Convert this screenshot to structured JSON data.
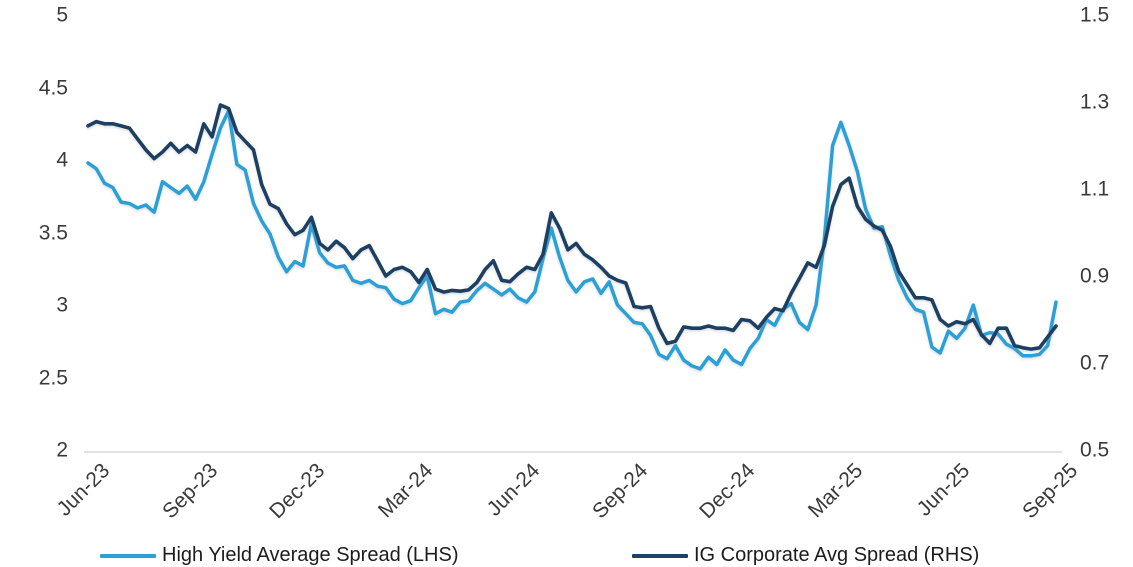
{
  "chart_data": {
    "type": "line",
    "title": "",
    "frequency": "weekly",
    "grid": false,
    "legend_position": "bottom",
    "background": "#ffffff",
    "axis_line_color": "#d9d9d9",
    "tick_text_color": "#3a3a3a",
    "x_tick_labels": [
      "Jun-23",
      "Sep-23",
      "Dec-23",
      "Mar-24",
      "Jun-24",
      "Sep-24",
      "Dec-24",
      "Mar-25",
      "Jun-25",
      "Sep-25"
    ],
    "weeks_per_x_tick": 13,
    "left_axis": {
      "min": 2,
      "max": 5,
      "tick_labels": [
        "5",
        "4.5",
        "4",
        "3.5",
        "3",
        "2.5",
        "2"
      ]
    },
    "right_axis": {
      "min": 0.5,
      "max": 1.5,
      "tick_labels": [
        "1.5",
        "1.3",
        "1.1",
        "0.9",
        "0.7",
        "0.5"
      ]
    },
    "series": [
      {
        "name": "High Yield Average Spread (LHS)",
        "axis": "left",
        "color": "#2ba0d8",
        "values": [
          3.98,
          3.94,
          3.84,
          3.81,
          3.71,
          3.7,
          3.67,
          3.69,
          3.64,
          3.85,
          3.81,
          3.77,
          3.82,
          3.73,
          3.85,
          4.04,
          4.22,
          4.34,
          3.97,
          3.93,
          3.7,
          3.58,
          3.49,
          3.33,
          3.23,
          3.3,
          3.27,
          3.56,
          3.36,
          3.29,
          3.26,
          3.27,
          3.17,
          3.15,
          3.17,
          3.13,
          3.12,
          3.04,
          3.01,
          3.03,
          3.12,
          3.2,
          2.94,
          2.97,
          2.95,
          3.02,
          3.03,
          3.1,
          3.15,
          3.11,
          3.07,
          3.11,
          3.05,
          3.02,
          3.09,
          3.32,
          3.53,
          3.33,
          3.17,
          3.09,
          3.16,
          3.18,
          3.08,
          3.16,
          3.0,
          2.94,
          2.88,
          2.87,
          2.79,
          2.66,
          2.63,
          2.72,
          2.62,
          2.58,
          2.56,
          2.64,
          2.59,
          2.69,
          2.62,
          2.59,
          2.7,
          2.77,
          2.9,
          2.86,
          2.97,
          3.01,
          2.88,
          2.83,
          3.0,
          3.45,
          4.1,
          4.26,
          4.1,
          3.92,
          3.66,
          3.53,
          3.54,
          3.34,
          3.17,
          3.05,
          2.97,
          2.95,
          2.71,
          2.67,
          2.82,
          2.77,
          2.84,
          3.0,
          2.79,
          2.81,
          2.8,
          2.73,
          2.7,
          2.65,
          2.65,
          2.66,
          2.72,
          3.02
        ]
      },
      {
        "name": "IG Corporate Avg Spread (RHS)",
        "axis": "right",
        "color": "#1e4164",
        "values": [
          1.245,
          1.255,
          1.25,
          1.25,
          1.245,
          1.24,
          1.215,
          1.19,
          1.17,
          1.185,
          1.205,
          1.185,
          1.2,
          1.185,
          1.25,
          1.22,
          1.293,
          1.285,
          1.23,
          1.21,
          1.19,
          1.11,
          1.065,
          1.055,
          1.02,
          0.995,
          1.005,
          1.035,
          0.975,
          0.96,
          0.98,
          0.965,
          0.94,
          0.96,
          0.97,
          0.935,
          0.9,
          0.915,
          0.92,
          0.91,
          0.885,
          0.915,
          0.87,
          0.863,
          0.867,
          0.865,
          0.868,
          0.885,
          0.915,
          0.935,
          0.89,
          0.887,
          0.905,
          0.92,
          0.915,
          0.95,
          1.045,
          1.01,
          0.96,
          0.975,
          0.95,
          0.937,
          0.92,
          0.9,
          0.89,
          0.884,
          0.83,
          0.827,
          0.83,
          0.78,
          0.745,
          0.75,
          0.783,
          0.78,
          0.78,
          0.785,
          0.78,
          0.78,
          0.775,
          0.8,
          0.797,
          0.78,
          0.805,
          0.825,
          0.82,
          0.86,
          0.895,
          0.93,
          0.92,
          0.97,
          1.06,
          1.11,
          1.125,
          1.06,
          1.03,
          1.015,
          1.005,
          0.968,
          0.91,
          0.88,
          0.85,
          0.85,
          0.845,
          0.8,
          0.785,
          0.795,
          0.79,
          0.8,
          0.765,
          0.745,
          0.78,
          0.78,
          0.74,
          0.735,
          0.732,
          0.735,
          0.76,
          0.785
        ]
      }
    ]
  }
}
